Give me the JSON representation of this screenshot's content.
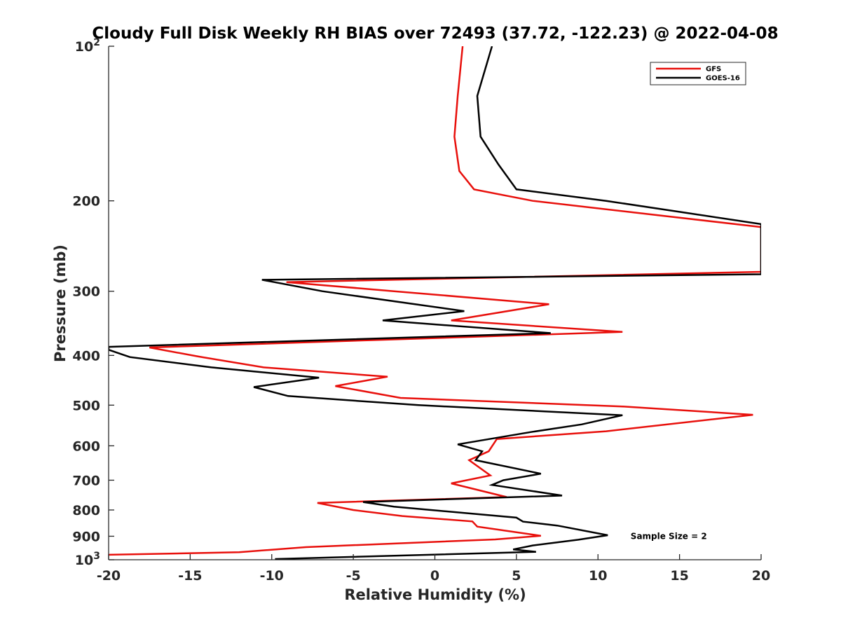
{
  "chart_data": {
    "type": "line",
    "title": "Cloudy Full Disk Weekly RH BIAS over 72493 (37.72, -122.23) @ 2022-04-08",
    "xlabel": "Relative Humidity (%)",
    "ylabel": "Pressure (mb)",
    "xlim": [
      -20,
      20
    ],
    "ylim": [
      100,
      1000
    ],
    "y_scale": "log",
    "y_reversed": true,
    "grid": false,
    "legend_position": "top-right",
    "x_ticks": [
      "-20",
      "-15",
      "-10",
      "-5",
      "0",
      "5",
      "10",
      "15",
      "20"
    ],
    "y_ticks": [
      {
        "value": 100,
        "base": "10",
        "exp": "2"
      },
      {
        "value": 200,
        "label": "200"
      },
      {
        "value": 300,
        "label": "300"
      },
      {
        "value": 400,
        "label": "400"
      },
      {
        "value": 500,
        "label": "500"
      },
      {
        "value": 600,
        "label": "600"
      },
      {
        "value": 700,
        "label": "700"
      },
      {
        "value": 800,
        "label": "800"
      },
      {
        "value": 900,
        "label": "900"
      },
      {
        "value": 1000,
        "base": "10",
        "exp": "3"
      }
    ],
    "series": [
      {
        "name": "GFS",
        "color": "#e8100c",
        "points": [
          [
            1.7,
            100
          ],
          [
            1.4,
            125
          ],
          [
            1.2,
            150
          ],
          [
            1.5,
            175
          ],
          [
            2.4,
            190
          ],
          [
            6.0,
            200
          ],
          [
            20.0,
            225
          ],
          [
            20.0,
            275
          ],
          [
            -9.1,
            288
          ],
          [
            -2.5,
            300
          ],
          [
            7.0,
            318
          ],
          [
            1.0,
            342
          ],
          [
            11.5,
            360
          ],
          [
            -17.5,
            386
          ],
          [
            -14.5,
            402
          ],
          [
            -10.5,
            422
          ],
          [
            -2.9,
            440
          ],
          [
            -6.1,
            459
          ],
          [
            -2.1,
            484
          ],
          [
            11.5,
            503
          ],
          [
            19.5,
            522
          ],
          [
            10.5,
            562
          ],
          [
            3.8,
            582
          ],
          [
            3.3,
            615
          ],
          [
            2.1,
            640
          ],
          [
            3.4,
            685
          ],
          [
            1.0,
            710
          ],
          [
            4.4,
            755
          ],
          [
            -7.2,
            775
          ],
          [
            -5.0,
            800
          ],
          [
            -2.0,
            822
          ],
          [
            2.3,
            842
          ],
          [
            2.6,
            862
          ],
          [
            6.5,
            898
          ],
          [
            3.7,
            913
          ],
          [
            -7.9,
            945
          ],
          [
            -12.0,
            967
          ],
          [
            -20.0,
            978
          ]
        ]
      },
      {
        "name": "GOES-16",
        "color": "#000000",
        "points": [
          [
            3.5,
            100
          ],
          [
            2.6,
            125
          ],
          [
            2.8,
            150
          ],
          [
            3.9,
            170
          ],
          [
            5.0,
            190
          ],
          [
            10.5,
            200
          ],
          [
            20.0,
            222
          ],
          [
            20.0,
            278
          ],
          [
            -10.6,
            285
          ],
          [
            -6.9,
            300
          ],
          [
            1.8,
            328
          ],
          [
            -3.2,
            342
          ],
          [
            7.1,
            362
          ],
          [
            -20.0,
            385
          ],
          [
            -20.0,
            390
          ],
          [
            -18.7,
            403
          ],
          [
            -13.7,
            422
          ],
          [
            -7.1,
            442
          ],
          [
            -11.1,
            461
          ],
          [
            -9.0,
            480
          ],
          [
            -1.0,
            500
          ],
          [
            11.5,
            523
          ],
          [
            9.0,
            545
          ],
          [
            5.9,
            564
          ],
          [
            1.4,
            596
          ],
          [
            2.9,
            615
          ],
          [
            2.5,
            640
          ],
          [
            6.5,
            680
          ],
          [
            4.2,
            700
          ],
          [
            3.5,
            715
          ],
          [
            7.8,
            750
          ],
          [
            -4.4,
            772
          ],
          [
            -2.5,
            788
          ],
          [
            5.0,
            828
          ],
          [
            5.4,
            843
          ],
          [
            7.5,
            858
          ],
          [
            10.6,
            896
          ],
          [
            8.8,
            914
          ],
          [
            6.0,
            938
          ],
          [
            4.8,
            955
          ],
          [
            6.2,
            965
          ],
          [
            -9.8,
            997
          ]
        ]
      }
    ],
    "annotations": [
      {
        "text": "Sample Size = 2",
        "x": 12.0,
        "y": 900
      }
    ]
  }
}
